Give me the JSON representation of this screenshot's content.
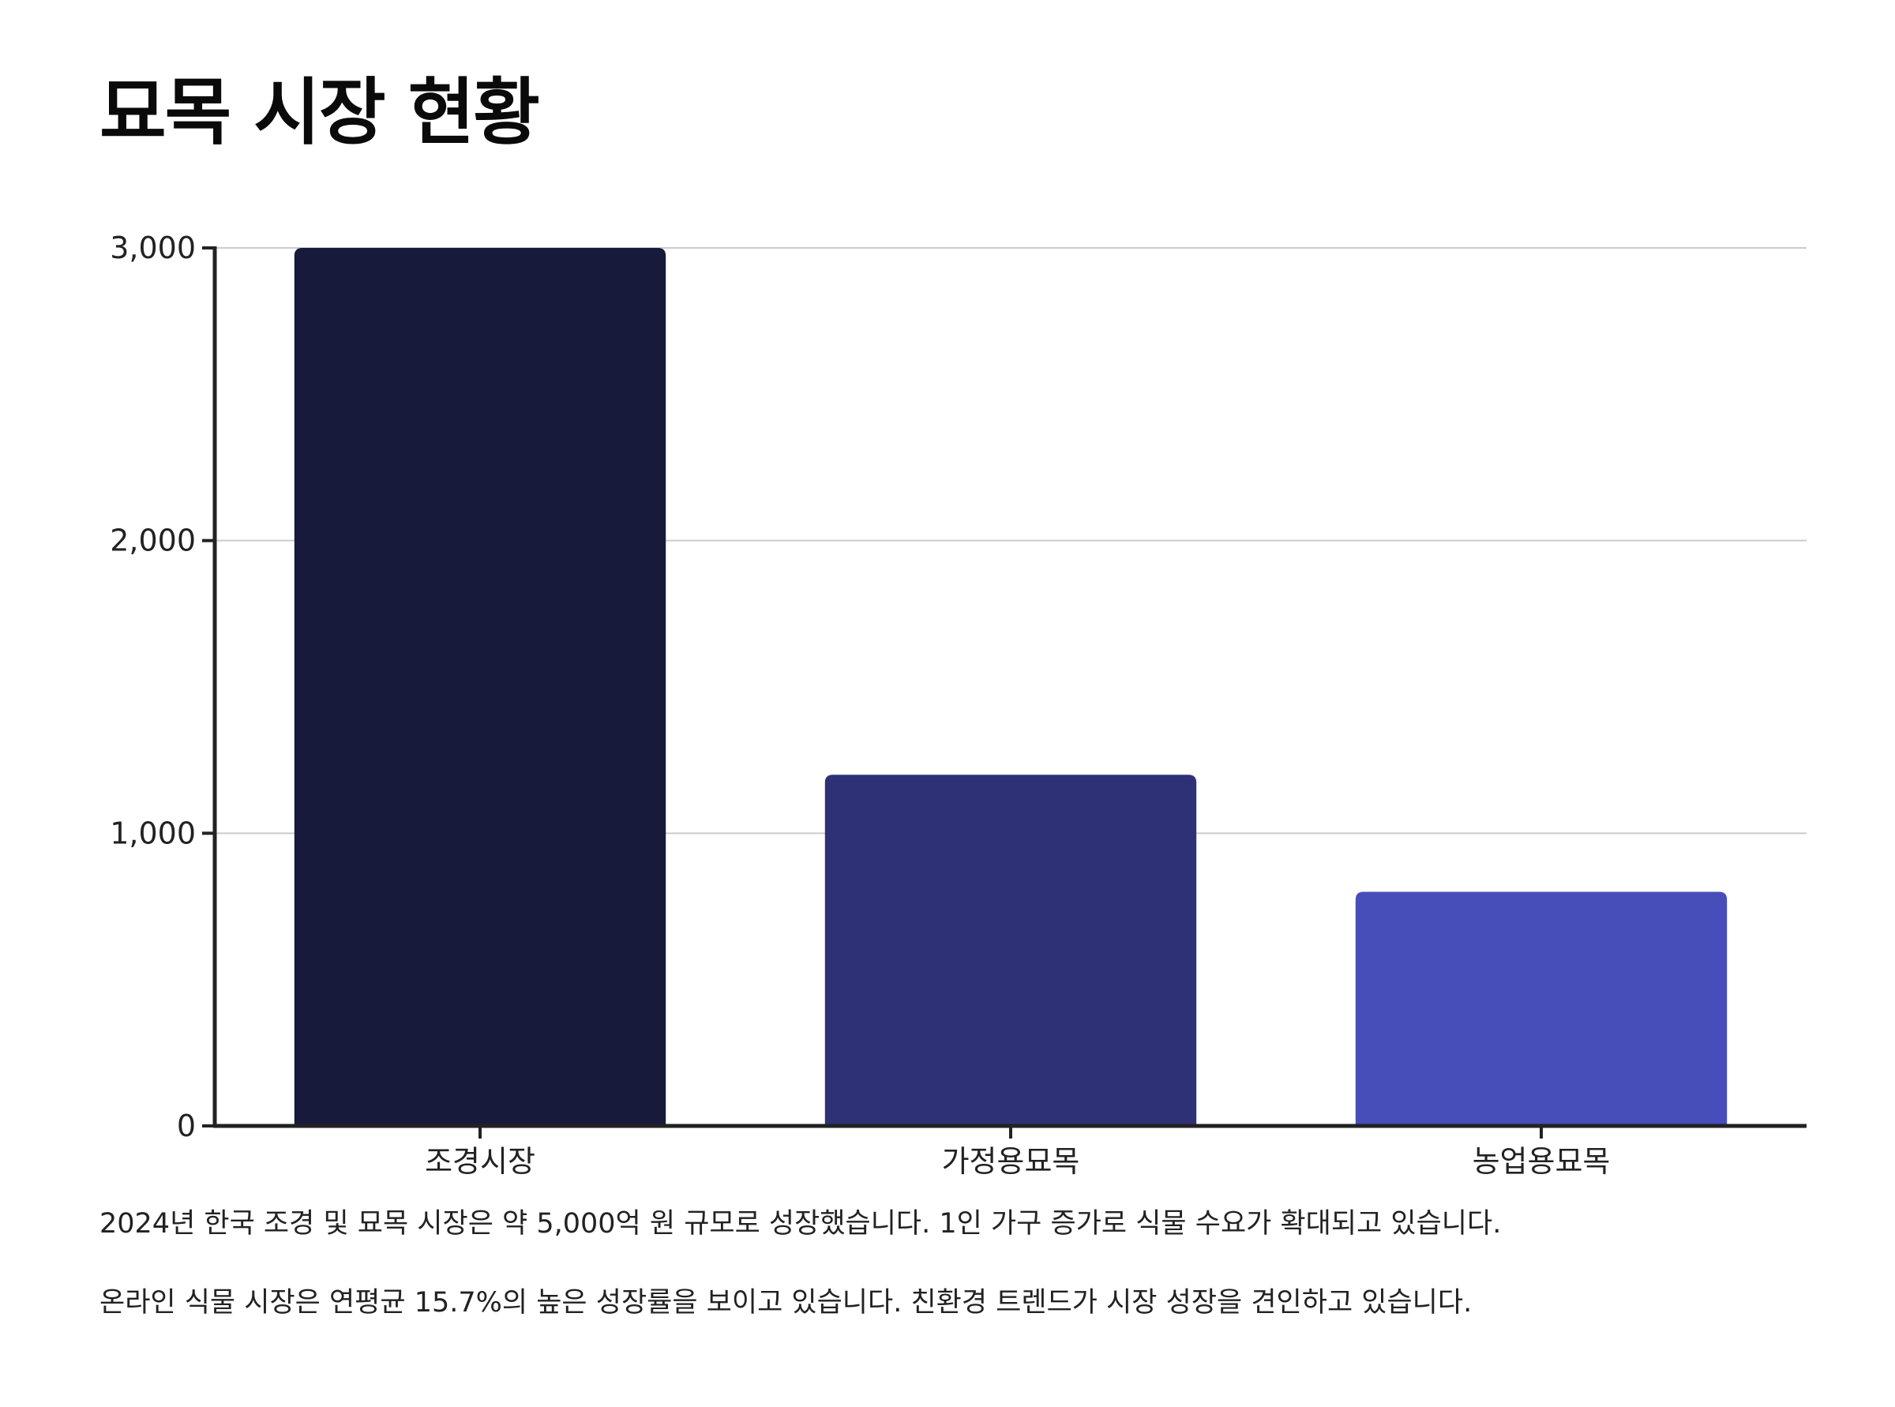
{
  "title": "묘목 시장 현황",
  "chart_data": {
    "type": "bar",
    "categories": [
      "조경시장",
      "가정용묘목",
      "농업용묘목"
    ],
    "values": [
      3000,
      1200,
      800
    ],
    "bar_colors": [
      "#171a3b",
      "#2f3177",
      "#474eb9"
    ],
    "ylim": [
      0,
      3000
    ],
    "yticks": [
      0,
      1000,
      2000,
      3000
    ],
    "ytick_labels": [
      "0",
      "1,000",
      "2,000",
      "3,000"
    ],
    "grid": true,
    "grid_color": "#cccccc",
    "axis_color": "#222222"
  },
  "notes": [
    "2024년 한국 조경 및 묘목 시장은 약 5,000억 원 규모로 성장했습니다. 1인 가구 증가로 식물 수요가 확대되고 있습니다.",
    "온라인 식물 시장은 연평균 15.7%의 높은 성장률을 보이고 있습니다. 친환경 트렌드가 시장 성장을 견인하고 있습니다."
  ]
}
